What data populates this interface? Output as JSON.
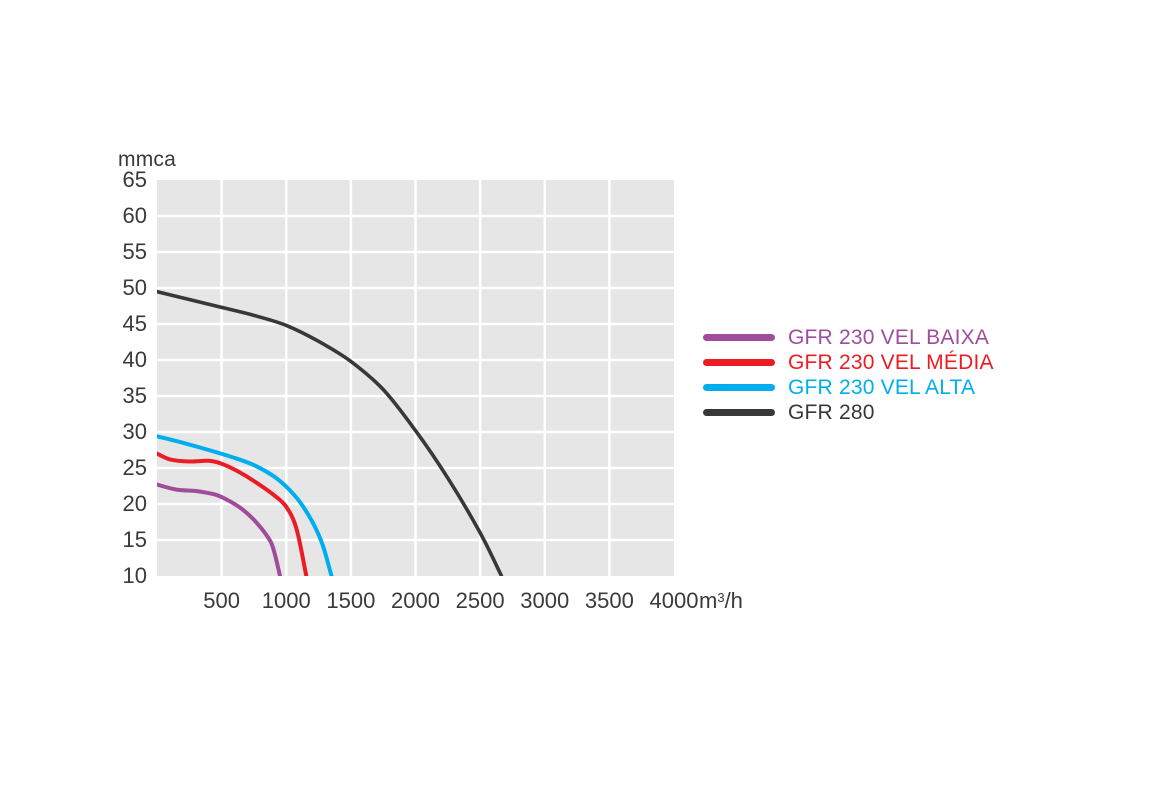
{
  "chart": {
    "y_axis_label": "mmca",
    "x_unit": {
      "base": "m",
      "exp": "3",
      "suffix": "/h"
    },
    "colors": {
      "plot_background": "#e6e6e7",
      "grid_line": "#ffffff",
      "tick_text": "#3b3a3b"
    }
  },
  "chart_data": {
    "type": "line",
    "title": "",
    "xlabel": "m³/h",
    "ylabel": "mmca",
    "xlim": [
      0,
      4000
    ],
    "ylim": [
      10,
      65
    ],
    "x_ticks": [
      500,
      1000,
      1500,
      2000,
      2500,
      3000,
      3500,
      4000
    ],
    "y_ticks": [
      65,
      60,
      55,
      50,
      45,
      40,
      35,
      30,
      25,
      20,
      15,
      10
    ],
    "grid": true,
    "legend_position": "right",
    "series": [
      {
        "name": "GFR 230 VEL BAIXA",
        "color": "#9f4d9b",
        "points": [
          [
            0,
            22.7
          ],
          [
            150,
            22.0
          ],
          [
            300,
            21.8
          ],
          [
            450,
            21.3
          ],
          [
            550,
            20.5
          ],
          [
            650,
            19.4
          ],
          [
            750,
            17.8
          ],
          [
            850,
            15.6
          ],
          [
            900,
            13.8
          ],
          [
            952,
            10
          ]
        ]
      },
      {
        "name": "GFR 230 VEL MÉDIA",
        "color": "#ec1c24",
        "points": [
          [
            0,
            27.0
          ],
          [
            100,
            26.2
          ],
          [
            250,
            25.9
          ],
          [
            400,
            26.0
          ],
          [
            500,
            25.6
          ],
          [
            620,
            24.6
          ],
          [
            750,
            23.2
          ],
          [
            900,
            21.3
          ],
          [
            1000,
            19.6
          ],
          [
            1080,
            16.5
          ],
          [
            1155,
            10
          ]
        ]
      },
      {
        "name": "GFR 230 VEL ALTA",
        "color": "#00aeef",
        "points": [
          [
            0,
            29.4
          ],
          [
            200,
            28.5
          ],
          [
            400,
            27.5
          ],
          [
            600,
            26.4
          ],
          [
            750,
            25.4
          ],
          [
            900,
            23.9
          ],
          [
            1000,
            22.4
          ],
          [
            1100,
            20.4
          ],
          [
            1200,
            17.6
          ],
          [
            1280,
            14.4
          ],
          [
            1350,
            10
          ]
        ]
      },
      {
        "name": "GFR 280",
        "color": "#3a373a",
        "points": [
          [
            0,
            49.5
          ],
          [
            250,
            48.4
          ],
          [
            500,
            47.3
          ],
          [
            750,
            46.2
          ],
          [
            1000,
            44.8
          ],
          [
            1250,
            42.6
          ],
          [
            1500,
            39.8
          ],
          [
            1750,
            35.9
          ],
          [
            2000,
            30.2
          ],
          [
            2250,
            23.6
          ],
          [
            2500,
            16.0
          ],
          [
            2665,
            10
          ]
        ]
      }
    ]
  }
}
